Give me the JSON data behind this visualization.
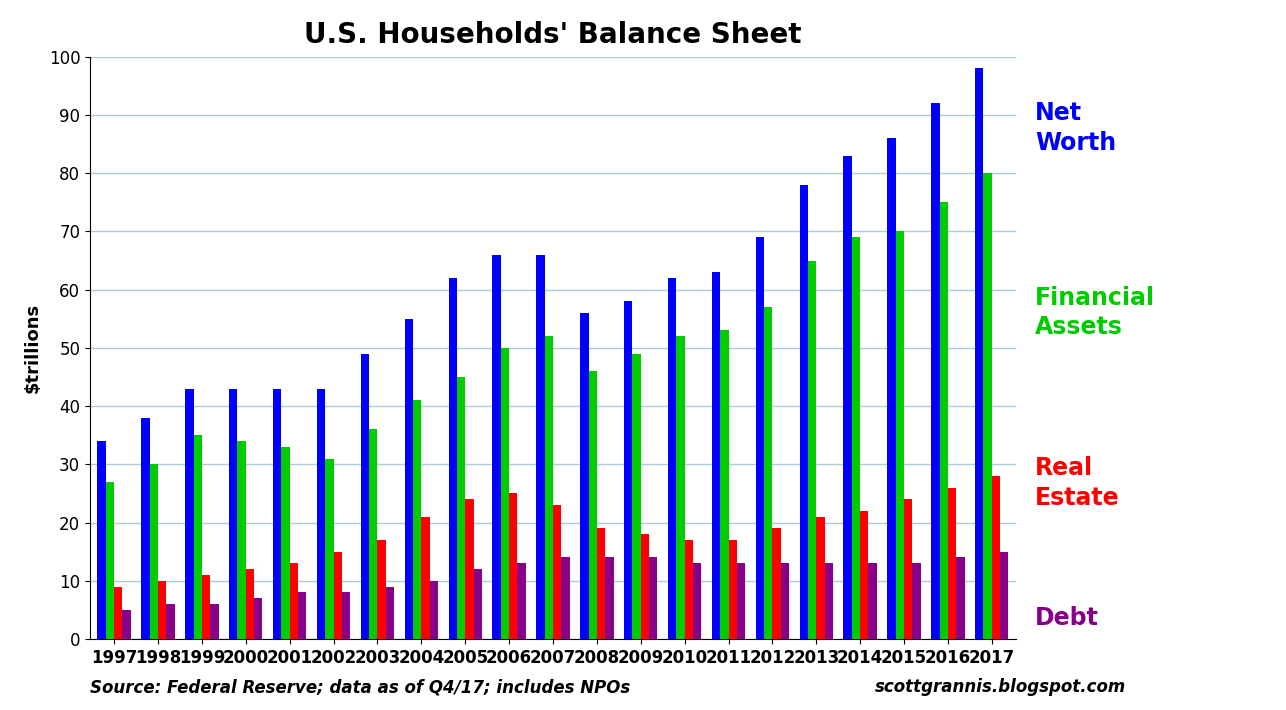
{
  "title": "U.S. Households' Balance Sheet",
  "ylabel": "$trillions",
  "source_text": "Source: Federal Reserve; data as of Q4/17; includes NPOs",
  "website_text": "scottgrannis.blogspot.com",
  "years": [
    1997,
    1998,
    1999,
    2000,
    2001,
    2002,
    2003,
    2004,
    2005,
    2006,
    2007,
    2008,
    2009,
    2010,
    2011,
    2012,
    2013,
    2014,
    2015,
    2016,
    2017
  ],
  "net_worth": [
    34,
    38,
    43,
    43,
    43,
    43,
    49,
    55,
    62,
    66,
    66,
    56,
    58,
    62,
    63,
    69,
    78,
    83,
    86,
    92,
    98
  ],
  "financial_assets": [
    27,
    30,
    35,
    34,
    33,
    31,
    36,
    41,
    45,
    50,
    52,
    46,
    49,
    52,
    53,
    57,
    65,
    69,
    70,
    75,
    80
  ],
  "real_estate": [
    9,
    10,
    11,
    12,
    13,
    15,
    17,
    21,
    24,
    25,
    23,
    19,
    18,
    17,
    17,
    19,
    21,
    22,
    24,
    26,
    28
  ],
  "debt": [
    5,
    6,
    6,
    7,
    8,
    8,
    9,
    10,
    12,
    13,
    14,
    14,
    14,
    13,
    13,
    13,
    13,
    13,
    13,
    14,
    15
  ],
  "colors": {
    "net_worth": "#0000FF",
    "financial_assets": "#00CC00",
    "real_estate": "#FF0000",
    "debt": "#880088"
  },
  "ylim": [
    0,
    100
  ],
  "yticks": [
    0,
    10,
    20,
    30,
    40,
    50,
    60,
    70,
    80,
    90,
    100
  ],
  "background_color": "#FFFFFF",
  "grid_color": "#AACCDD",
  "title_fontsize": 20,
  "axis_label_fontsize": 13,
  "tick_fontsize": 12,
  "legend_fontsize": 17,
  "source_fontsize": 12,
  "bar_width": 0.19
}
